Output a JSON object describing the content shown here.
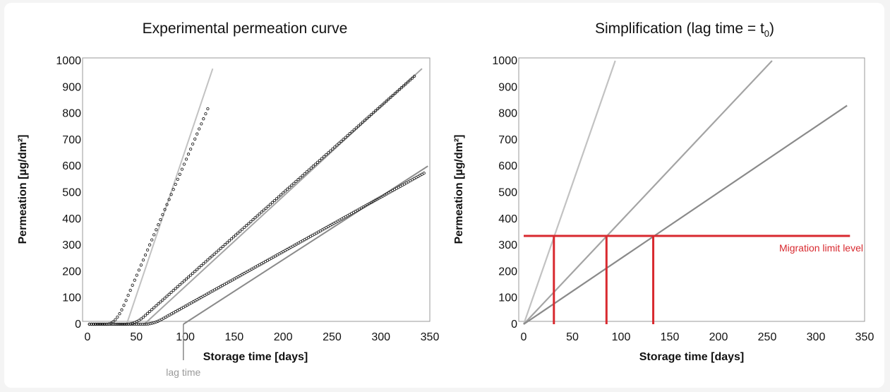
{
  "colors": {
    "migration_line": "#d8292f",
    "axis": "#999999",
    "curve_light": "#c2c2c2",
    "curve_mid": "#a4a4a4",
    "curve_dark": "#8a8a8a",
    "markers": "#222222"
  },
  "chart_data": [
    {
      "type": "scatter",
      "title": "Experimental permeation curve",
      "xlabel": "Storage time [days]",
      "ylabel": "Permeation [µg/dm²]",
      "xlim": [
        0,
        350
      ],
      "ylim": [
        0,
        1000
      ],
      "xticks": [
        "0",
        "50",
        "100",
        "150",
        "200",
        "250",
        "300",
        "350"
      ],
      "yticks": [
        "0",
        "100",
        "200",
        "300",
        "400",
        "500",
        "600",
        "700",
        "800",
        "900",
        "1000"
      ],
      "grid": false,
      "series": [
        {
          "lag_days": 20,
          "slope": 8.7,
          "x_end": 125,
          "fit_x0": 40,
          "fit_x1": 128,
          "fit_y1": 970
        },
        {
          "lag_days": 40,
          "slope": 3.3,
          "x_end": 335,
          "fit_x0": 58,
          "fit_x1": 342,
          "fit_y1": 970
        },
        {
          "lag_days": 58,
          "slope": 2.07,
          "x_end": 345,
          "fit_x0": 98,
          "fit_x1": 348,
          "fit_y1": 600
        }
      ],
      "annotations": [
        {
          "text": "lag time",
          "x": 98
        }
      ]
    },
    {
      "type": "line",
      "title": "Simplification (lag time = t",
      "title_sub": "0",
      "title_end": ")",
      "xlabel": "Storage time [days]",
      "ylabel": "Permeation [µg/dm²]",
      "xlim": [
        0,
        350
      ],
      "ylim": [
        0,
        1000
      ],
      "xticks": [
        "0",
        "50",
        "100",
        "150",
        "200",
        "250",
        "300",
        "350"
      ],
      "yticks": [
        "0",
        "100",
        "200",
        "300",
        "400",
        "500",
        "600",
        "700",
        "800",
        "900",
        "1000"
      ],
      "grid": false,
      "series": [
        {
          "x": [
            0,
            94
          ],
          "y": [
            0,
            1000
          ]
        },
        {
          "x": [
            0,
            255
          ],
          "y": [
            0,
            1000
          ]
        },
        {
          "x": [
            0,
            332
          ],
          "y": [
            0,
            830
          ]
        }
      ],
      "migration_limit": {
        "value": 335,
        "label": "Migration limit level",
        "x_end": 335
      },
      "drop_lines": [
        31,
        85,
        133
      ]
    }
  ]
}
